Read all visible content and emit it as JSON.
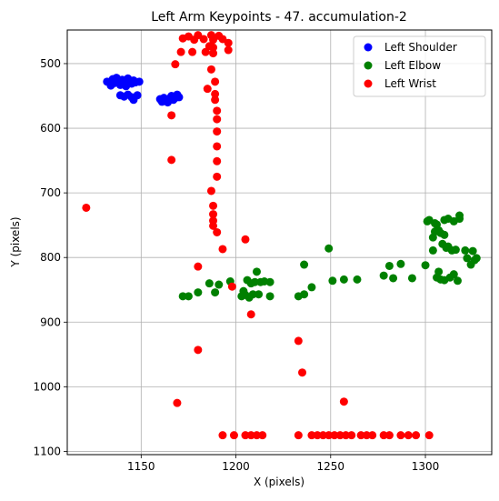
{
  "chart_data": {
    "type": "scatter",
    "title": "Left Arm Keypoints - 47. accumulation-2",
    "xlabel": "X (pixels)",
    "ylabel": "Y (pixels)",
    "xlim": [
      1111,
      1335
    ],
    "ylim": [
      1105,
      448
    ],
    "y_inverted": true,
    "grid": true,
    "legend_position": "upper right",
    "x_ticks": [
      1150,
      1200,
      1250,
      1300
    ],
    "y_ticks": [
      500,
      600,
      700,
      800,
      900,
      1000,
      1100
    ],
    "series": [
      {
        "name": "Left Shoulder",
        "color": "#0000ff",
        "points": [
          [
            1132,
            528
          ],
          [
            1134,
            534
          ],
          [
            1135,
            524
          ],
          [
            1136,
            530
          ],
          [
            1137,
            522
          ],
          [
            1138,
            527
          ],
          [
            1139,
            533
          ],
          [
            1140,
            525
          ],
          [
            1141,
            529
          ],
          [
            1142,
            535
          ],
          [
            1143,
            523
          ],
          [
            1144,
            528
          ],
          [
            1145,
            531
          ],
          [
            1146,
            526
          ],
          [
            1147,
            529
          ],
          [
            1149,
            528
          ],
          [
            1139,
            549
          ],
          [
            1141,
            551
          ],
          [
            1143,
            548
          ],
          [
            1145,
            552
          ],
          [
            1146,
            556
          ],
          [
            1148,
            549
          ],
          [
            1160,
            555
          ],
          [
            1161,
            559
          ],
          [
            1162,
            553
          ],
          [
            1163,
            557
          ],
          [
            1164,
            560
          ],
          [
            1165,
            554
          ],
          [
            1166,
            550
          ],
          [
            1167,
            556
          ],
          [
            1168,
            553
          ],
          [
            1169,
            548
          ],
          [
            1170,
            552
          ]
        ]
      },
      {
        "name": "Left Elbow",
        "color": "#008000",
        "points": [
          [
            1172,
            860
          ],
          [
            1175,
            860
          ],
          [
            1180,
            854
          ],
          [
            1186,
            840
          ],
          [
            1189,
            854
          ],
          [
            1191,
            842
          ],
          [
            1197,
            837
          ],
          [
            1203,
            860
          ],
          [
            1204,
            852
          ],
          [
            1205,
            858
          ],
          [
            1206,
            835
          ],
          [
            1207,
            862
          ],
          [
            1208,
            840
          ],
          [
            1209,
            857
          ],
          [
            1210,
            838
          ],
          [
            1211,
            822
          ],
          [
            1212,
            857
          ],
          [
            1213,
            838
          ],
          [
            1215,
            837
          ],
          [
            1218,
            860
          ],
          [
            1218,
            838
          ],
          [
            1233,
            860
          ],
          [
            1236,
            857
          ],
          [
            1236,
            811
          ],
          [
            1240,
            846
          ],
          [
            1249,
            786
          ],
          [
            1251,
            836
          ],
          [
            1257,
            834
          ],
          [
            1264,
            834
          ],
          [
            1278,
            828
          ],
          [
            1281,
            813
          ],
          [
            1283,
            832
          ],
          [
            1287,
            810
          ],
          [
            1293,
            832
          ],
          [
            1300,
            812
          ],
          [
            1301,
            744
          ],
          [
            1302,
            742
          ],
          [
            1304,
            789
          ],
          [
            1304,
            769
          ],
          [
            1305,
            760
          ],
          [
            1305,
            747
          ],
          [
            1306,
            749
          ],
          [
            1306,
            831
          ],
          [
            1307,
            822
          ],
          [
            1307,
            758
          ],
          [
            1308,
            762
          ],
          [
            1308,
            834
          ],
          [
            1309,
            779
          ],
          [
            1310,
            742
          ],
          [
            1310,
            765
          ],
          [
            1310,
            835
          ],
          [
            1311,
            785
          ],
          [
            1312,
            740
          ],
          [
            1312,
            783
          ],
          [
            1313,
            831
          ],
          [
            1314,
            789
          ],
          [
            1315,
            744
          ],
          [
            1315,
            826
          ],
          [
            1316,
            788
          ],
          [
            1317,
            836
          ],
          [
            1318,
            735
          ],
          [
            1318,
            740
          ],
          [
            1321,
            789
          ],
          [
            1322,
            801
          ],
          [
            1324,
            811
          ],
          [
            1325,
            790
          ],
          [
            1326,
            804
          ],
          [
            1327,
            801
          ]
        ]
      },
      {
        "name": "Left Wrist",
        "color": "#ff0000",
        "points": [
          [
            1169,
            1025
          ],
          [
            1180,
            943
          ],
          [
            1180,
            814
          ],
          [
            1198,
            845
          ],
          [
            1205,
            772
          ],
          [
            1208,
            888
          ],
          [
            1233,
            929
          ],
          [
            1235,
            978
          ],
          [
            1257,
            1023
          ],
          [
            1121,
            723
          ],
          [
            1166,
            580
          ],
          [
            1166,
            649
          ],
          [
            1168,
            501
          ],
          [
            1171,
            482
          ],
          [
            1172,
            461
          ],
          [
            1175,
            458
          ],
          [
            1178,
            463
          ],
          [
            1177,
            482
          ],
          [
            1180,
            456
          ],
          [
            1183,
            462
          ],
          [
            1184,
            482
          ],
          [
            1185,
            539
          ],
          [
            1186,
            473
          ],
          [
            1187,
            456
          ],
          [
            1187,
            509
          ],
          [
            1188,
            463
          ],
          [
            1188,
            475
          ],
          [
            1188,
            484
          ],
          [
            1189,
            528
          ],
          [
            1189,
            547
          ],
          [
            1189,
            556
          ],
          [
            1190,
            573
          ],
          [
            1190,
            586
          ],
          [
            1190,
            605
          ],
          [
            1190,
            628
          ],
          [
            1190,
            651
          ],
          [
            1190,
            675
          ],
          [
            1187,
            697
          ],
          [
            1188,
            720
          ],
          [
            1188,
            733
          ],
          [
            1188,
            743
          ],
          [
            1188,
            751
          ],
          [
            1190,
            761
          ],
          [
            1191,
            457
          ],
          [
            1193,
            462
          ],
          [
            1193,
            787
          ],
          [
            1196,
            468
          ],
          [
            1196,
            479
          ],
          [
            1193,
            1075
          ],
          [
            1199,
            1075
          ],
          [
            1205,
            1075
          ],
          [
            1208,
            1075
          ],
          [
            1211,
            1075
          ],
          [
            1214,
            1075
          ],
          [
            1233,
            1075
          ],
          [
            1240,
            1075
          ],
          [
            1243,
            1075
          ],
          [
            1246,
            1075
          ],
          [
            1249,
            1075
          ],
          [
            1252,
            1075
          ],
          [
            1255,
            1075
          ],
          [
            1258,
            1075
          ],
          [
            1261,
            1075
          ],
          [
            1266,
            1075
          ],
          [
            1269,
            1075
          ],
          [
            1272,
            1075
          ],
          [
            1278,
            1075
          ],
          [
            1281,
            1075
          ],
          [
            1287,
            1075
          ],
          [
            1291,
            1075
          ],
          [
            1295,
            1075
          ],
          [
            1302,
            1075
          ]
        ]
      }
    ]
  }
}
